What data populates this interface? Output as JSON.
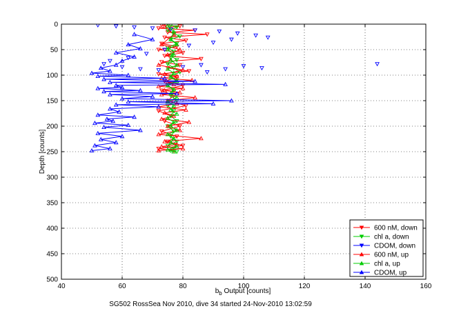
{
  "chart_data": {
    "type": "scatter",
    "title": "",
    "xlabel": {
      "base": "b",
      "sub": "b",
      "rest": " Output [counts]"
    },
    "ylabel": "Depth [counts]",
    "footer": "SG502 RossSea Nov 2010, dive 34 started 24-Nov-2010 13:02:59",
    "xlim": [
      40,
      160
    ],
    "ylim": [
      0,
      500
    ],
    "y_reversed": true,
    "xticks": [
      40,
      60,
      80,
      100,
      120,
      140,
      160
    ],
    "yticks": [
      0,
      50,
      100,
      150,
      200,
      250,
      300,
      350,
      400,
      450,
      500
    ],
    "grid": true,
    "legend_position": "bottom-right",
    "series": [
      {
        "name": "600 nM, down",
        "color": "#ff0000",
        "marker": "triangle-down",
        "connected": true,
        "x": [
          73,
          79,
          72,
          84,
          75,
          88,
          74,
          81,
          73,
          78,
          72,
          80,
          74,
          86,
          73,
          79,
          75,
          82,
          72,
          78,
          74,
          80,
          73,
          77,
          75,
          81,
          72,
          76,
          74,
          79,
          73,
          78,
          75,
          80,
          72,
          77
        ],
        "y": [
          2,
          4,
          8,
          12,
          16,
          20,
          26,
          32,
          38,
          44,
          50,
          56,
          62,
          68,
          74,
          80,
          86,
          92,
          98,
          104,
          112,
          120,
          130,
          140,
          150,
          160,
          170,
          180,
          190,
          200,
          210,
          220,
          230,
          238,
          244,
          248
        ]
      },
      {
        "name": "chl a, down",
        "color": "#00cc00",
        "marker": "triangle-down",
        "connected": true,
        "x": [
          76,
          78,
          75,
          77,
          79,
          76,
          78,
          75,
          77,
          76,
          78,
          75,
          77,
          79,
          76,
          78,
          75,
          77,
          76,
          78,
          75,
          77,
          76,
          78,
          75,
          77,
          76,
          78,
          75,
          77,
          76,
          78
        ],
        "y": [
          2,
          6,
          12,
          18,
          24,
          30,
          38,
          46,
          54,
          62,
          70,
          78,
          86,
          94,
          102,
          110,
          120,
          130,
          140,
          150,
          160,
          170,
          180,
          190,
          200,
          210,
          220,
          230,
          238,
          244,
          248,
          250
        ]
      },
      {
        "name": "CDOM, down",
        "color": "#0000ff",
        "marker": "triangle-down",
        "connected": false,
        "x": [
          52,
          58,
          64,
          70,
          76,
          84,
          92,
          98,
          104,
          108,
          96,
          90,
          82,
          74,
          68,
          62,
          56,
          54,
          60,
          66,
          72,
          80,
          86,
          94,
          100,
          144,
          106,
          88
        ],
        "y": [
          2,
          4,
          6,
          8,
          10,
          12,
          14,
          18,
          22,
          26,
          30,
          36,
          42,
          50,
          58,
          66,
          72,
          78,
          84,
          88,
          90,
          84,
          80,
          88,
          82,
          78,
          86,
          94
        ]
      },
      {
        "name": "600 nM, up",
        "color": "#ff0000",
        "marker": "triangle-up",
        "connected": true,
        "x": [
          72,
          80,
          73,
          78,
          74,
          86,
          72,
          79,
          75,
          82,
          73,
          77,
          74,
          81,
          72,
          78,
          75,
          84,
          73,
          79,
          74,
          80,
          72,
          77,
          75,
          83,
          73,
          78,
          74,
          80,
          72,
          76,
          75,
          79,
          73,
          77,
          74
        ],
        "y": [
          248,
          244,
          240,
          236,
          230,
          224,
          216,
          208,
          200,
          192,
          186,
          180,
          174,
          168,
          162,
          156,
          150,
          144,
          138,
          134,
          130,
          126,
          122,
          118,
          114,
          110,
          106,
          102,
          98,
          90,
          80,
          70,
          60,
          50,
          40,
          20,
          4
        ]
      },
      {
        "name": "chl a, up",
        "color": "#00cc00",
        "marker": "triangle-up",
        "connected": true,
        "x": [
          77,
          75,
          78,
          76,
          77,
          75,
          78,
          76,
          77,
          75,
          78,
          76,
          77,
          75,
          78,
          76,
          77,
          75,
          78,
          76,
          77,
          75,
          78,
          76,
          77,
          75,
          78,
          76,
          77,
          75
        ],
        "y": [
          250,
          246,
          240,
          232,
          224,
          216,
          208,
          200,
          192,
          184,
          176,
          168,
          160,
          152,
          144,
          136,
          128,
          120,
          112,
          104,
          96,
          88,
          80,
          70,
          60,
          50,
          40,
          30,
          15,
          3
        ]
      },
      {
        "name": "CDOM, up",
        "color": "#0000ff",
        "marker": "triangle-up",
        "connected": true,
        "x": [
          50,
          56,
          51,
          58,
          53,
          60,
          52,
          66,
          54,
          62,
          51,
          57,
          55,
          64,
          52,
          59,
          56,
          72,
          58,
          90,
          62,
          96,
          60,
          70,
          56,
          78,
          54,
          66,
          52,
          60,
          58,
          94,
          56,
          84,
          54,
          74,
          52,
          62,
          50,
          56,
          53,
          58,
          60,
          64,
          58,
          66,
          62,
          70,
          64
        ],
        "y": [
          248,
          244,
          238,
          232,
          226,
          220,
          214,
          208,
          202,
          198,
          194,
          190,
          186,
          182,
          178,
          172,
          166,
          162,
          158,
          156,
          152,
          150,
          146,
          142,
          138,
          136,
          132,
          130,
          126,
          124,
          120,
          118,
          114,
          112,
          108,
          106,
          102,
          100,
          96,
          92,
          86,
          80,
          72,
          64,
          56,
          48,
          40,
          30,
          20
        ]
      }
    ]
  }
}
